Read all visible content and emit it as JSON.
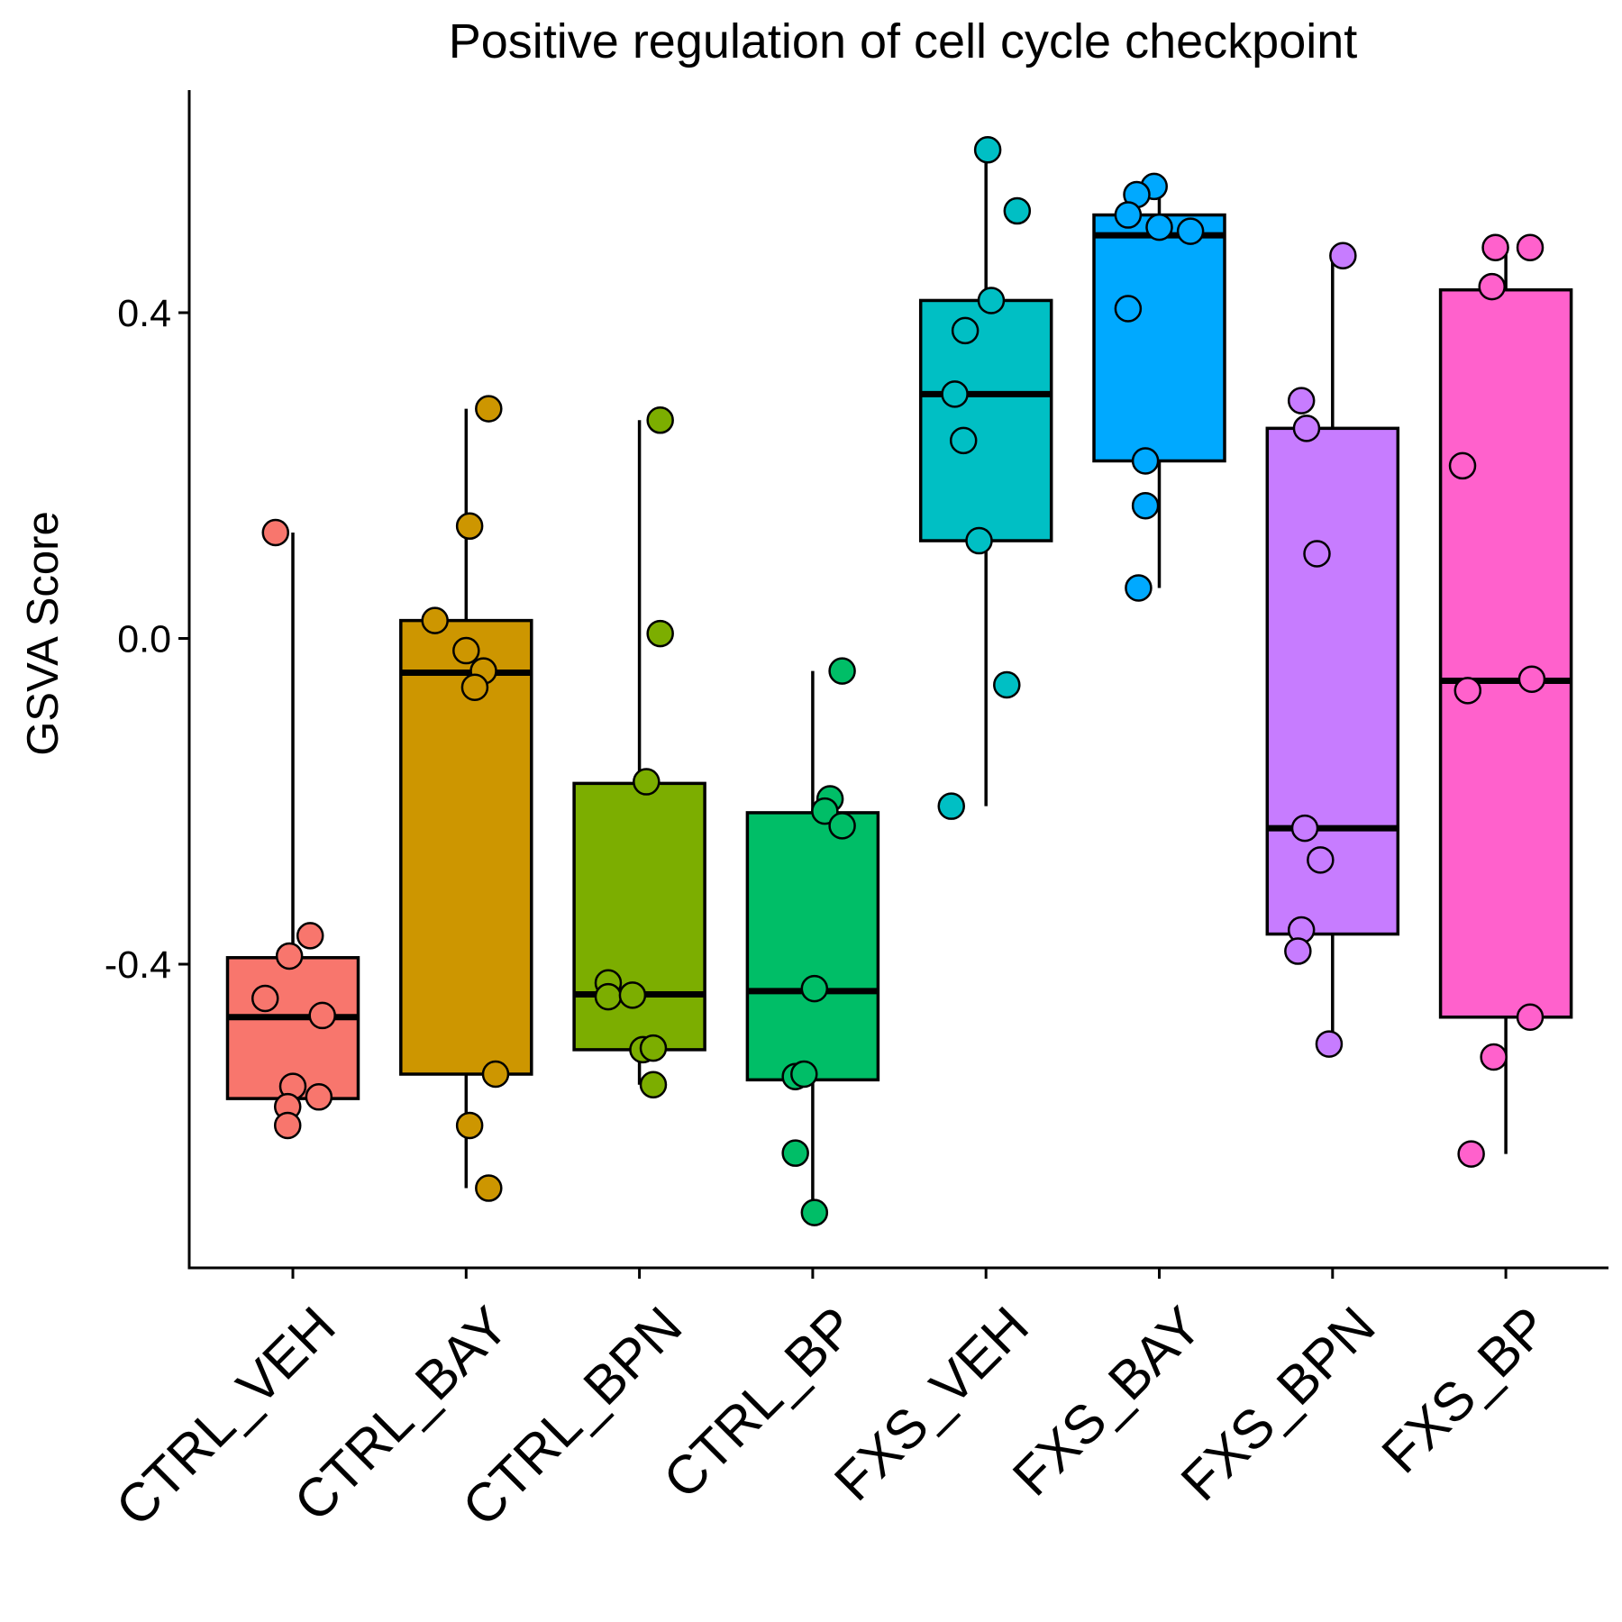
{
  "chart_data": {
    "type": "box",
    "title": "Positive regulation of cell cycle checkpoint",
    "ylabel": "GSVA Score",
    "xlabel": "",
    "ylim": [
      -0.77,
      0.6
    ],
    "yticks": [
      {
        "value": 0.4,
        "label": "0.4"
      },
      {
        "value": 0.0,
        "label": "0.0"
      },
      {
        "value": -0.4,
        "label": "-0.4"
      }
    ],
    "grid": false,
    "legend": "none",
    "groups": [
      {
        "name": "CTRL_VEH",
        "color": "#F8766D",
        "box": {
          "whisker_low": -0.6,
          "q1": -0.565,
          "median": -0.465,
          "q3": -0.392,
          "whisker_high": 0.13
        },
        "points": [
          [
            -0.1,
            0.13
          ],
          [
            0.1,
            -0.365
          ],
          [
            -0.02,
            -0.39
          ],
          [
            -0.16,
            -0.442
          ],
          [
            0.17,
            -0.463
          ],
          [
            0.0,
            -0.55
          ],
          [
            0.15,
            -0.563
          ],
          [
            -0.03,
            -0.575
          ],
          [
            -0.03,
            -0.598
          ]
        ]
      },
      {
        "name": "CTRL_BAY",
        "color": "#CD9600",
        "box": {
          "whisker_low": -0.675,
          "q1": -0.535,
          "median": -0.042,
          "q3": 0.022,
          "whisker_high": 0.282
        },
        "points": [
          [
            0.13,
            0.282
          ],
          [
            0.02,
            0.138
          ],
          [
            -0.18,
            0.022
          ],
          [
            0.0,
            -0.015
          ],
          [
            0.1,
            -0.04
          ],
          [
            0.05,
            -0.06
          ],
          [
            0.17,
            -0.535
          ],
          [
            0.02,
            -0.598
          ],
          [
            0.13,
            -0.675
          ]
        ]
      },
      {
        "name": "CTRL_BPN",
        "color": "#7CAE00",
        "box": {
          "whisker_low": -0.548,
          "q1": -0.505,
          "median": -0.437,
          "q3": -0.178,
          "whisker_high": 0.268
        },
        "points": [
          [
            0.12,
            0.268
          ],
          [
            0.12,
            0.006
          ],
          [
            0.04,
            -0.176
          ],
          [
            -0.18,
            -0.423
          ],
          [
            -0.18,
            -0.44
          ],
          [
            -0.04,
            -0.438
          ],
          [
            0.02,
            -0.505
          ],
          [
            0.08,
            -0.503
          ],
          [
            0.08,
            -0.548
          ]
        ]
      },
      {
        "name": "CTRL_BP",
        "color": "#00BE67",
        "box": {
          "whisker_low": -0.705,
          "q1": -0.542,
          "median": -0.433,
          "q3": -0.214,
          "whisker_high": -0.04
        },
        "points": [
          [
            0.17,
            -0.04
          ],
          [
            0.1,
            -0.197
          ],
          [
            0.07,
            -0.212
          ],
          [
            0.17,
            -0.23
          ],
          [
            0.01,
            -0.43
          ],
          [
            -0.1,
            -0.538
          ],
          [
            -0.05,
            -0.535
          ],
          [
            -0.1,
            -0.632
          ],
          [
            0.01,
            -0.705
          ]
        ]
      },
      {
        "name": "FXS_VEH",
        "color": "#00BFC4",
        "box": {
          "whisker_low": -0.206,
          "q1": 0.12,
          "median": 0.3,
          "q3": 0.415,
          "whisker_high": 0.6
        },
        "points": [
          [
            0.01,
            0.6
          ],
          [
            0.18,
            0.525
          ],
          [
            0.03,
            0.415
          ],
          [
            -0.12,
            0.378
          ],
          [
            -0.18,
            0.3
          ],
          [
            -0.13,
            0.243
          ],
          [
            -0.04,
            0.12
          ],
          [
            0.12,
            -0.057
          ],
          [
            -0.2,
            -0.206
          ]
        ]
      },
      {
        "name": "FXS_BAY",
        "color": "#00A9FF",
        "box": {
          "whisker_low": 0.062,
          "q1": 0.218,
          "median": 0.495,
          "q3": 0.52,
          "whisker_high": 0.555
        },
        "points": [
          [
            -0.03,
            0.555
          ],
          [
            -0.13,
            0.545
          ],
          [
            -0.18,
            0.52
          ],
          [
            0.0,
            0.505
          ],
          [
            0.18,
            0.5
          ],
          [
            -0.18,
            0.405
          ],
          [
            -0.08,
            0.218
          ],
          [
            -0.08,
            0.163
          ],
          [
            -0.12,
            0.062
          ]
        ]
      },
      {
        "name": "FXS_BPN",
        "color": "#C77CFF",
        "box": {
          "whisker_low": -0.498,
          "q1": -0.363,
          "median": -0.233,
          "q3": 0.258,
          "whisker_high": 0.47
        },
        "points": [
          [
            0.06,
            0.47
          ],
          [
            -0.18,
            0.292
          ],
          [
            -0.15,
            0.258
          ],
          [
            -0.09,
            0.104
          ],
          [
            -0.16,
            -0.233
          ],
          [
            -0.07,
            -0.272
          ],
          [
            -0.18,
            -0.358
          ],
          [
            -0.2,
            -0.384
          ],
          [
            -0.02,
            -0.498
          ]
        ]
      },
      {
        "name": "FXS_BP",
        "color": "#FF61CC",
        "box": {
          "whisker_low": -0.633,
          "q1": -0.465,
          "median": -0.052,
          "q3": 0.428,
          "whisker_high": 0.48
        },
        "points": [
          [
            0.14,
            0.48
          ],
          [
            -0.06,
            0.48
          ],
          [
            -0.08,
            0.432
          ],
          [
            -0.25,
            0.212
          ],
          [
            0.15,
            -0.05
          ],
          [
            -0.22,
            -0.064
          ],
          [
            0.14,
            -0.465
          ],
          [
            -0.07,
            -0.514
          ],
          [
            -0.2,
            -0.633
          ]
        ]
      }
    ]
  }
}
